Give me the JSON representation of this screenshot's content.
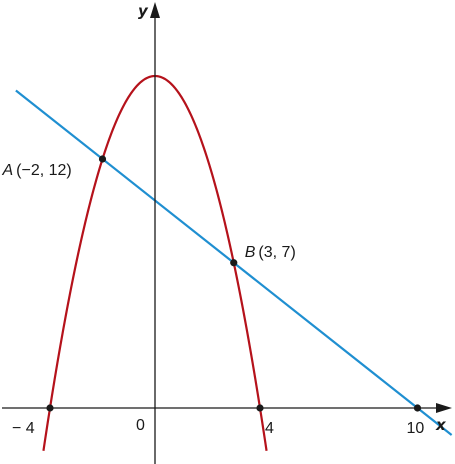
{
  "chart_data": {
    "type": "line",
    "xlabel": "x",
    "ylabel": "y",
    "xlim": [
      -5.35,
      10.9
    ],
    "ylim": [
      -2.0,
      15.2
    ],
    "origin_label": "0",
    "x_ticks": [
      {
        "value": -4,
        "label": "− 4"
      },
      {
        "value": 4,
        "label": "4"
      },
      {
        "value": 10,
        "label": "10"
      }
    ],
    "grid": false,
    "legend": "none",
    "series": [
      {
        "kind": "parabola",
        "equation": {
          "a": -1,
          "b": 0,
          "c": 16
        },
        "x_range": [
          -4.25,
          4.25
        ],
        "color": "#b5121b"
      },
      {
        "kind": "line",
        "equation": {
          "m": -1,
          "c": 10
        },
        "x_range": [
          -5.3,
          11.3
        ],
        "color": "#1f8fd1"
      }
    ],
    "points": [
      {
        "name": "A",
        "coords": "(−2, 12)",
        "x": -2,
        "y": 12
      },
      {
        "name": "B",
        "coords": "(3, 7)",
        "x": 3,
        "y": 7
      },
      {
        "x": -4,
        "y": 0
      },
      {
        "x": 4,
        "y": 0
      },
      {
        "x": 10,
        "y": 0
      }
    ]
  }
}
